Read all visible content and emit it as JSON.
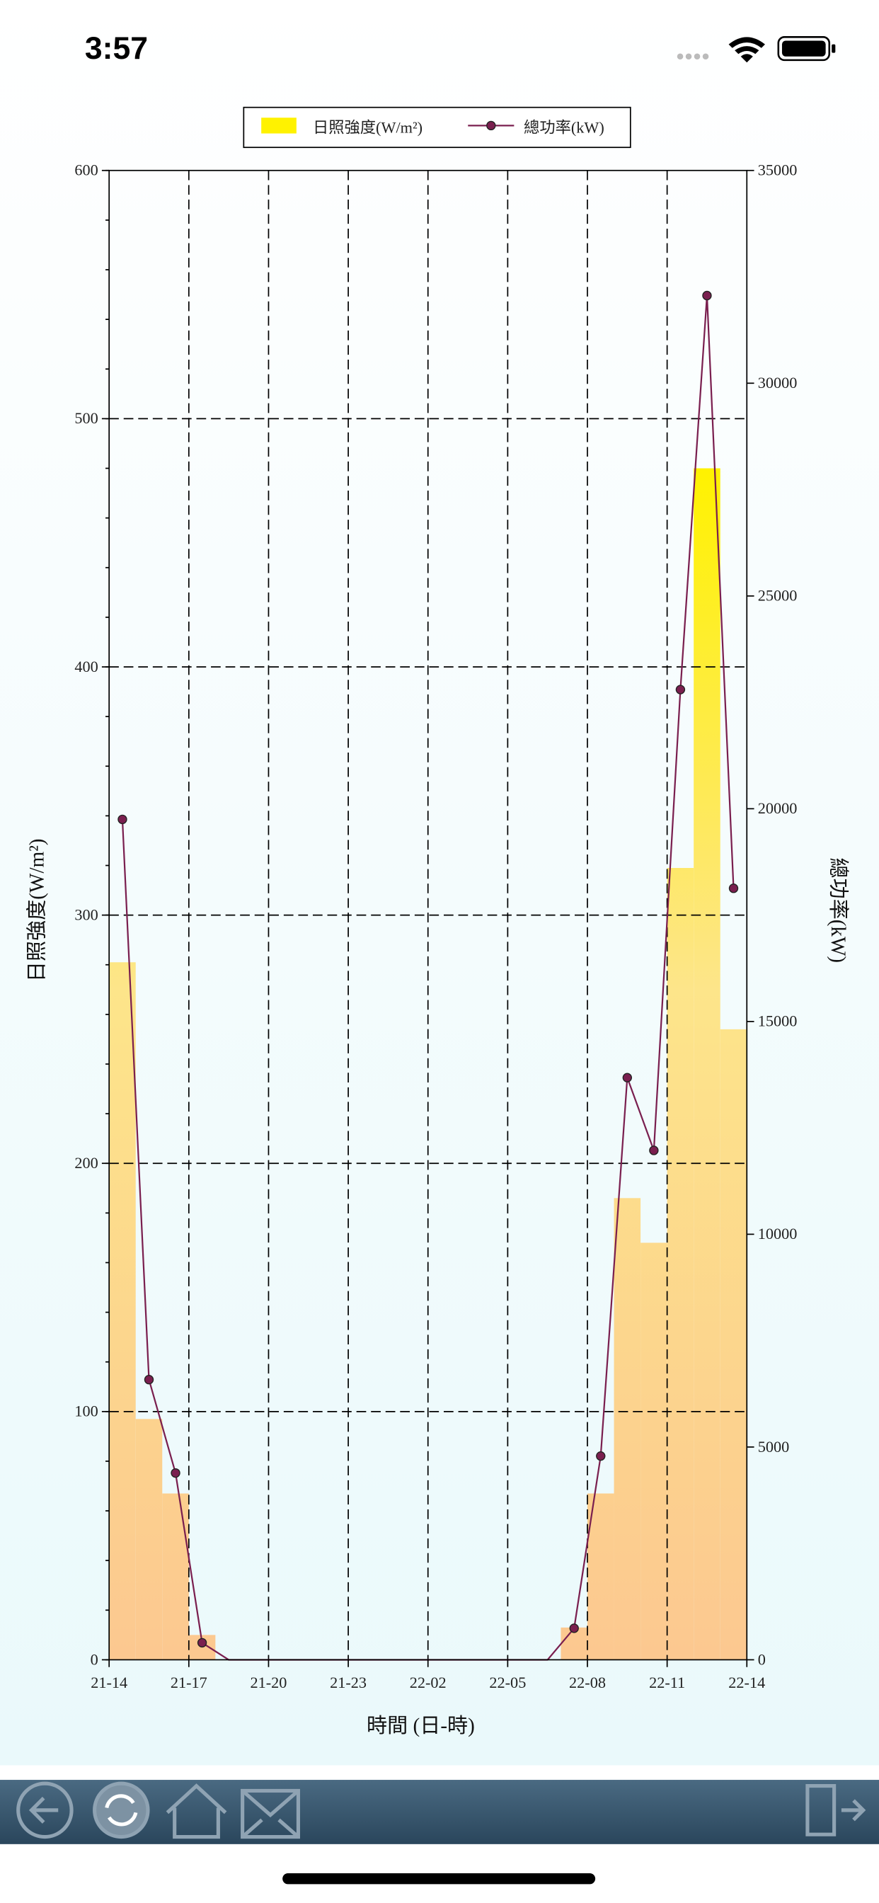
{
  "status_bar": {
    "time": "3:57"
  },
  "chart_data": {
    "type": "combo",
    "xlabel": "時間 (日-時)",
    "ylabel": "日照強度(W/m²)",
    "y2label": "總功率(kW)",
    "bins": [
      0,
      1,
      2,
      3,
      4,
      5,
      6,
      7,
      8,
      9,
      10,
      11,
      12,
      13,
      14,
      15,
      16,
      17,
      18,
      19,
      20,
      21,
      22,
      23,
      24
    ],
    "x": [
      0.5,
      1.5,
      2.5,
      3.5,
      4.5,
      5.5,
      6.5,
      7.5,
      8.5,
      9.5,
      10.5,
      11.5,
      12.5,
      13.5,
      14.5,
      15.5,
      16.5,
      17.5,
      18.5,
      19.5,
      20.5,
      21.5,
      22.5,
      23.5
    ],
    "xlim": [
      0,
      24
    ],
    "xticks": [
      {
        "value": 0,
        "label": "21-14"
      },
      {
        "value": 3,
        "label": "21-17"
      },
      {
        "value": 6,
        "label": "21-20"
      },
      {
        "value": 9,
        "label": "21-23"
      },
      {
        "value": 12,
        "label": "22-02"
      },
      {
        "value": 15,
        "label": "22-05"
      },
      {
        "value": 18,
        "label": "22-08"
      },
      {
        "value": 21,
        "label": "22-11"
      },
      {
        "value": 24,
        "label": "22-14"
      }
    ],
    "ylim": [
      0,
      600
    ],
    "yticks": [
      0,
      100,
      200,
      300,
      400,
      500,
      600
    ],
    "y2lim": [
      0,
      35000
    ],
    "y2ticks": [
      0,
      5000,
      10000,
      15000,
      20000,
      25000,
      30000,
      35000
    ],
    "grid": true,
    "legend": "top",
    "series": [
      {
        "name": "日照強度(W/m²)",
        "type": "bar",
        "color": "#fff200",
        "values": [
          281,
          97,
          67,
          10,
          0,
          0,
          0,
          0,
          0,
          0,
          0,
          0,
          0,
          0,
          0,
          0,
          0,
          13,
          67,
          186,
          168,
          319,
          480,
          254
        ]
      },
      {
        "name": "總功率(kW)",
        "type": "line",
        "axis": "y2",
        "color": "#7a1f4f",
        "values": [
          19750,
          6584,
          4389,
          400,
          0,
          0,
          0,
          0,
          0,
          0,
          0,
          0,
          0,
          0,
          0,
          0,
          0,
          741,
          4788,
          13680,
          11970,
          22800,
          32060,
          18130
        ]
      }
    ]
  }
}
